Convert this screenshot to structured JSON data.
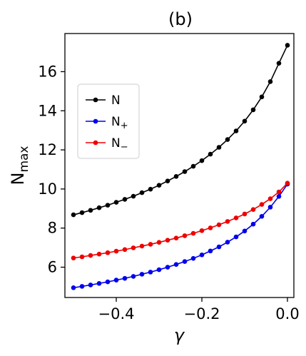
{
  "chart_data": {
    "type": "line",
    "title": "(b)",
    "xlabel": "γ",
    "ylabel": {
      "main": "N",
      "sub": "max"
    },
    "xlim": [
      -0.52,
      0.015
    ],
    "ylim": [
      4.45,
      17.95
    ],
    "xticks": [
      -0.4,
      -0.2,
      0.0
    ],
    "xtick_labels": [
      "−0.4",
      "−0.2",
      "0.0"
    ],
    "yticks": [
      6,
      8,
      10,
      12,
      14,
      16
    ],
    "ytick_labels": [
      "6",
      "8",
      "10",
      "12",
      "14",
      "16"
    ],
    "grid": false,
    "legend_position": "upper-left",
    "x": [
      -0.5,
      -0.48,
      -0.46,
      -0.44,
      -0.42,
      -0.4,
      -0.38,
      -0.36,
      -0.34,
      -0.32,
      -0.3,
      -0.28,
      -0.26,
      -0.24,
      -0.22,
      -0.2,
      -0.18,
      -0.16,
      -0.14,
      -0.12,
      -0.1,
      -0.08,
      -0.06,
      -0.04,
      -0.02,
      0.0
    ],
    "series": [
      {
        "name": "N",
        "subscript": "",
        "color": "#000000",
        "values": [
          8.68,
          8.79,
          8.91,
          9.04,
          9.17,
          9.32,
          9.47,
          9.63,
          9.81,
          9.99,
          10.19,
          10.41,
          10.64,
          10.89,
          11.16,
          11.45,
          11.78,
          12.13,
          12.53,
          12.97,
          13.47,
          14.05,
          14.71,
          15.49,
          16.43,
          17.35
        ]
      },
      {
        "name": "N",
        "subscript": "+",
        "color": "#0000ee",
        "values": [
          4.95,
          5.02,
          5.09,
          5.17,
          5.25,
          5.34,
          5.43,
          5.53,
          5.64,
          5.75,
          5.87,
          6.0,
          6.14,
          6.29,
          6.45,
          6.63,
          6.83,
          7.04,
          7.28,
          7.55,
          7.85,
          8.2,
          8.6,
          9.07,
          9.62,
          10.25
        ]
      },
      {
        "name": "N",
        "subscript": "−",
        "color": "#ee0000",
        "values": [
          6.47,
          6.53,
          6.6,
          6.67,
          6.74,
          6.82,
          6.9,
          6.99,
          7.08,
          7.17,
          7.27,
          7.38,
          7.49,
          7.61,
          7.73,
          7.87,
          8.01,
          8.17,
          8.34,
          8.52,
          8.72,
          8.95,
          9.21,
          9.5,
          9.85,
          10.3
        ]
      }
    ]
  }
}
